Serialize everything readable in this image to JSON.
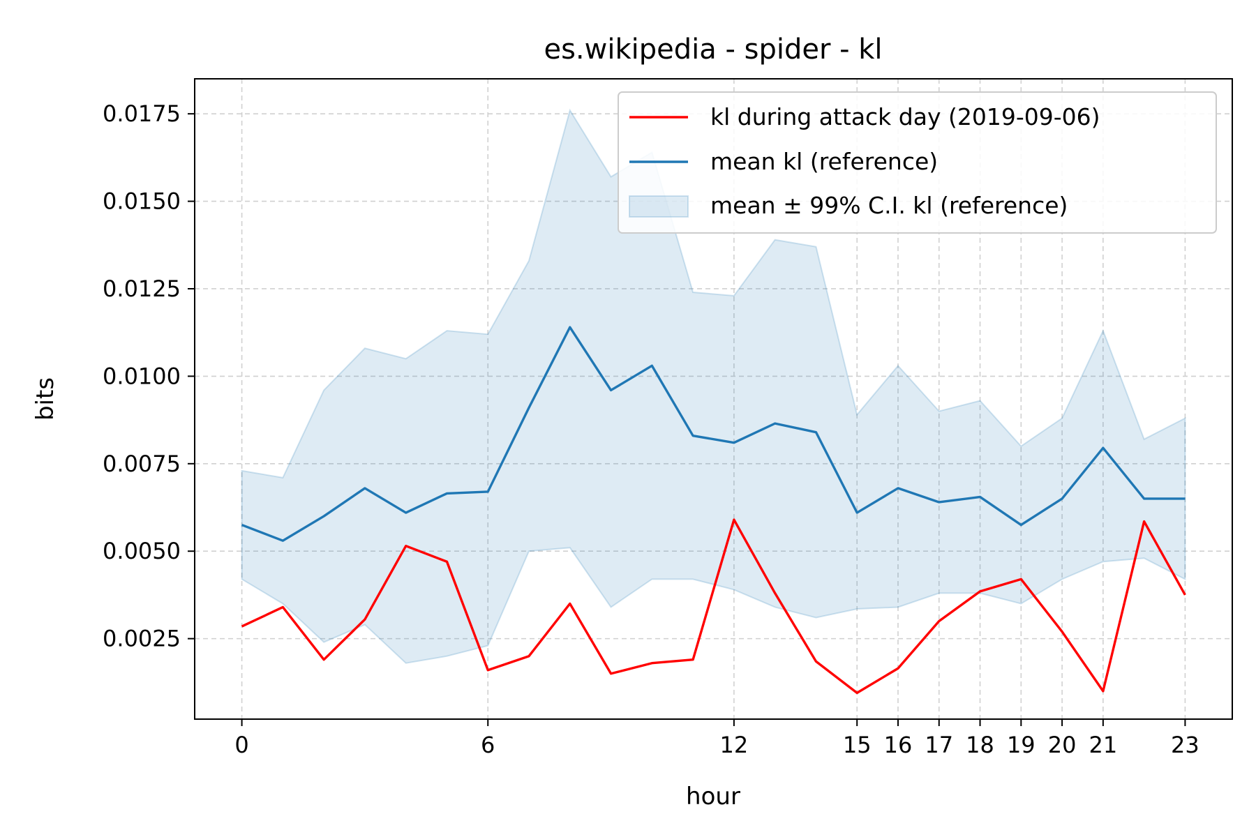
{
  "chart_data": {
    "type": "line",
    "title": "es.wikipedia - spider - kl",
    "xlabel": "hour",
    "ylabel": "bits",
    "xlim": [
      -1.15,
      24.15
    ],
    "ylim": [
      0.0002,
      0.0185
    ],
    "x_ticks": [
      0,
      6,
      12,
      15,
      16,
      17,
      18,
      19,
      20,
      21,
      23
    ],
    "y_ticks": [
      0.0025,
      0.005,
      0.0075,
      0.01,
      0.0125,
      0.015,
      0.0175
    ],
    "y_tick_labels": [
      "0.0025",
      "0.0050",
      "0.0075",
      "0.0100",
      "0.0125",
      "0.0150",
      "0.0175"
    ],
    "grid": true,
    "legend_position": "top-right",
    "x": [
      0,
      1,
      2,
      3,
      4,
      5,
      6,
      7,
      8,
      9,
      10,
      11,
      12,
      13,
      14,
      15,
      16,
      17,
      18,
      19,
      20,
      21,
      22,
      23
    ],
    "series": [
      {
        "name": "kl during attack day (2019-09-06)",
        "type": "line",
        "color": "#ff0000",
        "values": [
          0.00285,
          0.0034,
          0.0019,
          0.00305,
          0.00515,
          0.0047,
          0.0016,
          0.002,
          0.0035,
          0.0015,
          0.0018,
          0.0019,
          0.0059,
          0.0038,
          0.00185,
          0.00095,
          0.00165,
          0.003,
          0.00385,
          0.0042,
          0.0027,
          0.001,
          0.00585,
          0.00375
        ]
      },
      {
        "name": "mean kl (reference)",
        "type": "line",
        "color": "#1f77b4",
        "values": [
          0.00575,
          0.0053,
          0.006,
          0.0068,
          0.0061,
          0.00665,
          0.0067,
          0.0091,
          0.0114,
          0.0096,
          0.0103,
          0.0083,
          0.0081,
          0.00865,
          0.0084,
          0.0061,
          0.0068,
          0.0064,
          0.00655,
          0.00575,
          0.0065,
          0.00795,
          0.0065,
          0.0065
        ]
      },
      {
        "name": "mean ± 99% C.I. kl (reference)",
        "type": "band",
        "color": "#1f77b4",
        "lower": [
          0.0042,
          0.0035,
          0.0024,
          0.0029,
          0.0018,
          0.002,
          0.0023,
          0.005,
          0.0051,
          0.0034,
          0.0042,
          0.0042,
          0.0039,
          0.0034,
          0.0031,
          0.00335,
          0.0034,
          0.0038,
          0.0038,
          0.0035,
          0.0042,
          0.0047,
          0.0048,
          0.0042
        ],
        "upper": [
          0.0073,
          0.0071,
          0.0096,
          0.0108,
          0.0105,
          0.0113,
          0.0112,
          0.0133,
          0.0176,
          0.0157,
          0.0164,
          0.0124,
          0.0123,
          0.0139,
          0.0137,
          0.0089,
          0.0103,
          0.009,
          0.0093,
          0.008,
          0.0088,
          0.0113,
          0.0082,
          0.0088
        ]
      }
    ]
  }
}
